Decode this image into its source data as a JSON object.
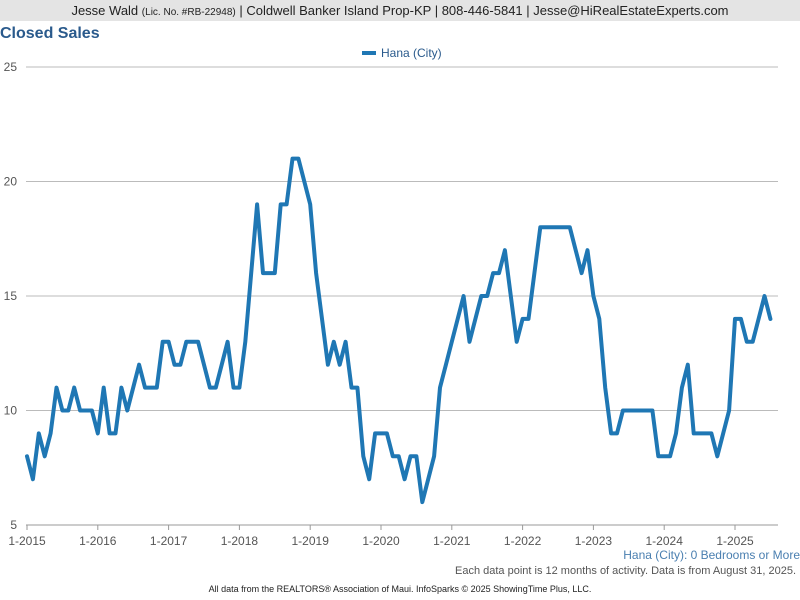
{
  "header": {
    "agent": "Jesse Wald",
    "license": "(Lic. No. #RB-22948)",
    "contact": "| Coldwell Banker Island Prop-KP | 808-446-5841 | Jesse@HiRealEstateExperts.com"
  },
  "chart_title": "Closed Sales",
  "subinfo": "Hana (City): 0 Bedrooms or More",
  "note": "Each data point is 12 months of activity. Data is from August 31, 2025.",
  "footer": "All data from the REALTORS® Association of Maui. InfoSparks © 2025 ShowingTime Plus, LLC.",
  "colors": {
    "series": "#1f77b4",
    "grid": "#bbbbbb",
    "title": "#2a5a8c"
  },
  "chart_data": {
    "type": "line",
    "title": "Closed Sales",
    "ylim": [
      5,
      25
    ],
    "yticks": [
      5,
      10,
      15,
      20,
      25
    ],
    "xticks": [
      "1-2015",
      "1-2016",
      "1-2017",
      "1-2018",
      "1-2019",
      "1-2020",
      "1-2021",
      "1-2022",
      "1-2023",
      "1-2024",
      "1-2025"
    ],
    "legend": "top-center",
    "grid": true,
    "series": [
      {
        "name": "Hana (City)",
        "start": "2015-01",
        "interval": "month",
        "values": [
          8,
          7,
          9,
          8,
          9,
          11,
          10,
          10,
          11,
          10,
          10,
          10,
          9,
          11,
          9,
          9,
          11,
          10,
          11,
          12,
          11,
          11,
          11,
          13,
          13,
          12,
          12,
          13,
          13,
          13,
          12,
          11,
          11,
          12,
          13,
          11,
          11,
          13,
          16,
          19,
          16,
          16,
          16,
          19,
          19,
          21,
          21,
          20,
          19,
          16,
          14,
          12,
          13,
          12,
          13,
          11,
          11,
          8,
          7,
          9,
          9,
          9,
          8,
          8,
          7,
          8,
          8,
          6,
          7,
          8,
          11,
          12,
          13,
          14,
          15,
          13,
          14,
          15,
          15,
          16,
          16,
          17,
          15,
          13,
          14,
          14,
          16,
          18,
          18,
          18,
          18,
          18,
          18,
          17,
          16,
          17,
          15,
          14,
          11,
          9,
          9,
          10,
          10,
          10,
          10,
          10,
          10,
          8,
          8,
          8,
          9,
          11,
          12,
          9,
          9,
          9,
          9,
          8,
          9,
          10,
          14,
          14,
          13,
          13,
          14,
          15,
          14
        ]
      }
    ]
  }
}
